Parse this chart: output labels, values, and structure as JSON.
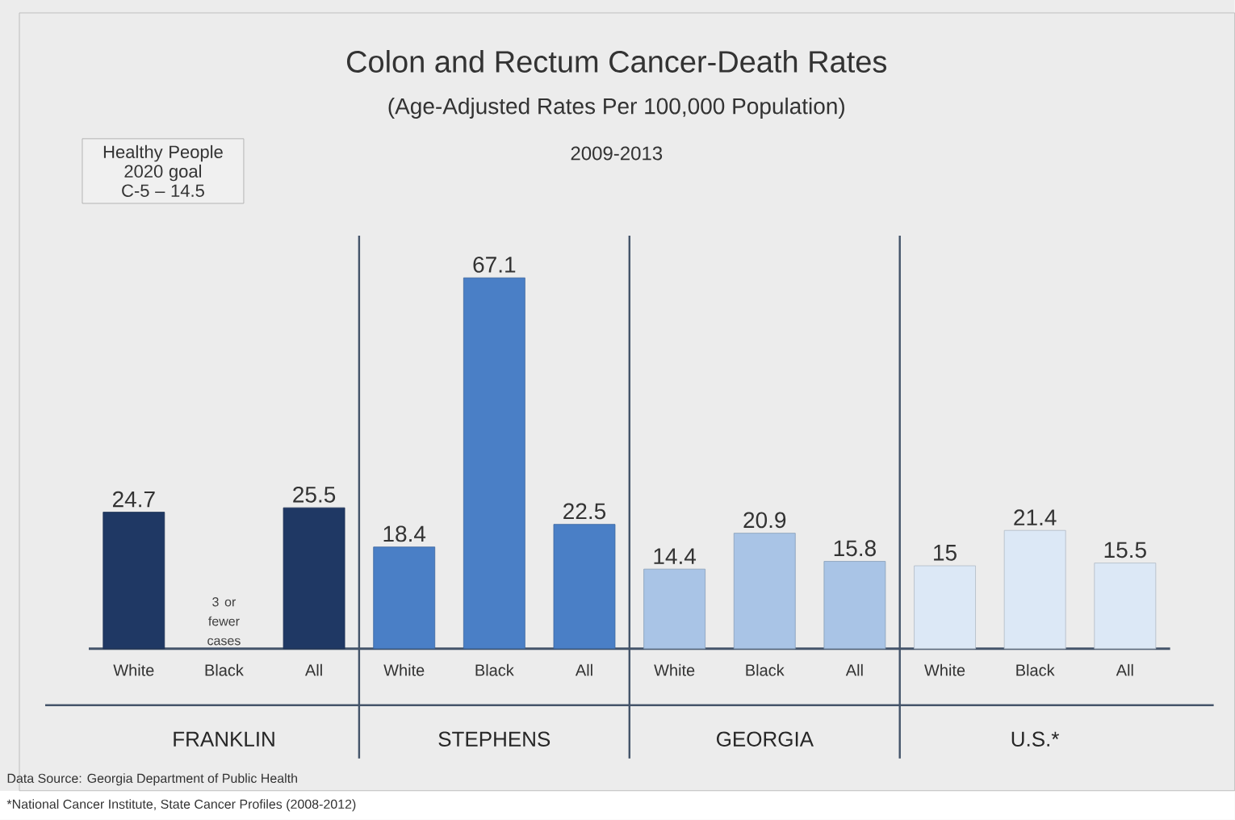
{
  "chart_data": {
    "type": "bar",
    "title": "Colon and Rectum Cancer-Death Rates",
    "subtitle": "(Age-Adjusted Rates Per 100,000 Population)",
    "categories": [
      "White",
      "Black",
      "All",
      "White",
      "Black",
      "All",
      "White",
      "Black",
      "All",
      "White",
      "Black",
      "All"
    ],
    "values": [
      24.7,
      null,
      25.5,
      18.4,
      67.1,
      22.5,
      14.4,
      20.9,
      15.8,
      15,
      21.4,
      15.5
    ],
    "colors": [
      "#1f3864",
      "#1f3864",
      "#1f3864",
      "#4a7fc6",
      "#4a7fc6",
      "#4a7fc6",
      "#a9c4e6",
      "#a9c4e6",
      "#a9c4e6",
      "#dce8f6",
      "#dce8f6",
      "#dce8f6"
    ],
    "data_labels": true,
    "annotations": [
      "Healthy People 2020 goal C-5 – 14.5",
      "2009-2013",
      "3 or fewer cases",
      "FRANKLIN",
      "STEPHENS",
      "GEORGIA",
      "U.S.*",
      "Data Source: Georgia Department of Public Health",
      "*National Cancer Institute, State Cancer Profiles (2008-2012)"
    ]
  }
}
